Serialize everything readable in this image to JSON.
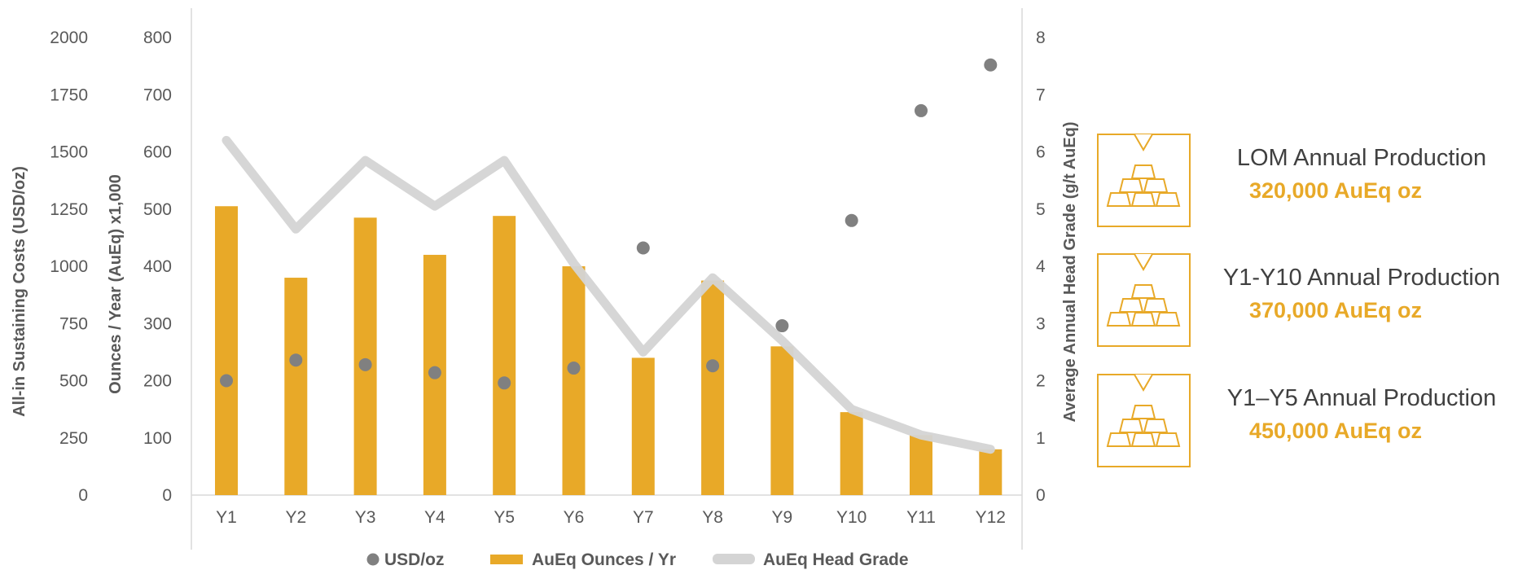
{
  "chart_data": {
    "type": "bar",
    "categories": [
      "Y1",
      "Y2",
      "Y3",
      "Y4",
      "Y5",
      "Y6",
      "Y7",
      "Y8",
      "Y9",
      "Y10",
      "Y11",
      "Y12"
    ],
    "series": [
      {
        "name": "AuEq Ounces / Yr",
        "type": "bar",
        "axis": "left-inner",
        "color": "#E8A928",
        "values": [
          505,
          380,
          485,
          420,
          488,
          400,
          240,
          375,
          260,
          145,
          105,
          80
        ]
      },
      {
        "name": "AuEq Head Grade",
        "type": "line",
        "axis": "right",
        "color": "#D4D4D4",
        "values": [
          6.2,
          4.65,
          5.85,
          5.05,
          5.85,
          4.05,
          2.5,
          3.8,
          2.7,
          1.5,
          1.05,
          0.8
        ]
      },
      {
        "name": "USD/oz",
        "type": "scatter",
        "axis": "left-outer",
        "color": "#808080",
        "values": [
          500,
          590,
          570,
          535,
          490,
          555,
          1080,
          565,
          740,
          1200,
          1680,
          1880
        ]
      }
    ],
    "axes": {
      "left_outer": {
        "label": "All-in Sustaining Costs (USD/oz)",
        "ticks": [
          "0",
          "250",
          "500",
          "750",
          "1000",
          "1250",
          "1500",
          "1750",
          "2000"
        ],
        "range": [
          0,
          2000
        ]
      },
      "left_inner": {
        "label": "Ounces / Year (AuEq) x1,000",
        "ticks": [
          "0",
          "100",
          "200",
          "300",
          "400",
          "500",
          "600",
          "700",
          "800"
        ],
        "range": [
          0,
          800
        ]
      },
      "right": {
        "label": "Average Annual Head Grade (g/t AuEq)",
        "ticks": [
          "0",
          "1",
          "2",
          "3",
          "4",
          "5",
          "6",
          "7",
          "8"
        ],
        "range": [
          0,
          8
        ]
      }
    },
    "legend": {
      "position": "bottom",
      "items": [
        "USD/oz",
        "AuEq Ounces / Yr",
        "AuEq Head Grade"
      ]
    },
    "grid": false
  },
  "production_boxes": [
    {
      "title": "LOM Annual Production",
      "value": "320,000 AuEq oz",
      "icon": "gold-bars-icon"
    },
    {
      "title": "Y1-Y10 Annual Production",
      "value": "370,000 AuEq oz",
      "icon": "gold-bars-icon"
    },
    {
      "title": "Y1–Y5 Annual Production",
      "value": "450,000 AuEq oz",
      "icon": "gold-bars-icon"
    }
  ],
  "colors": {
    "gold": "#E8A928",
    "grey_line": "#D4D4D4",
    "dot": "#808080",
    "text": "#595959"
  }
}
